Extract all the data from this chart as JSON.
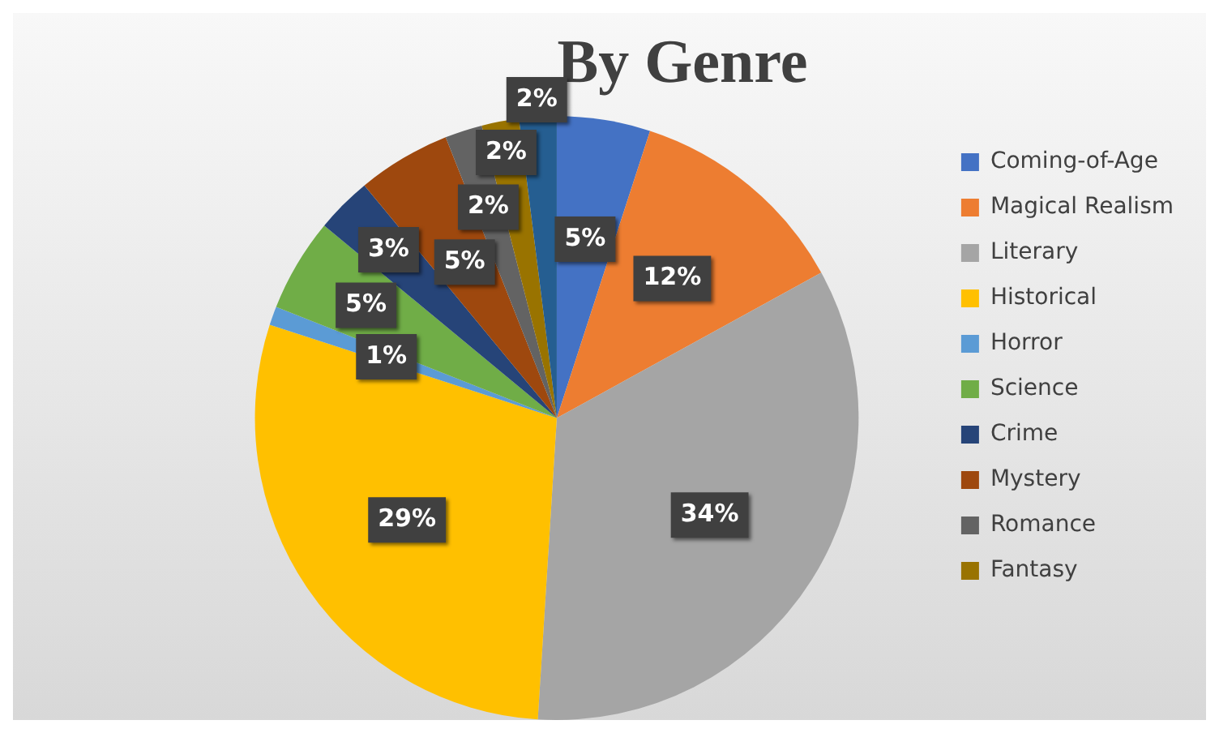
{
  "chart_data": {
    "type": "pie",
    "title": "By Genre",
    "categories": [
      "Coming-of-Age",
      "Magical Realism",
      "Literary",
      "Historical",
      "Horror",
      "Science",
      "Crime",
      "Mystery",
      "Romance",
      "Fantasy",
      null
    ],
    "values": [
      5,
      12,
      34,
      29,
      1,
      5,
      3,
      5,
      2,
      2,
      2
    ],
    "colors": [
      "#4472c4",
      "#ed7d31",
      "#a5a5a5",
      "#ffc000",
      "#5b9bd5",
      "#70ad47",
      "#264478",
      "#9e480e",
      "#636363",
      "#997300",
      "#255e91"
    ],
    "value_labels": [
      "5%",
      "12%",
      "34%",
      "29%",
      "1%",
      "5%",
      "3%",
      "5%",
      "2%",
      "2%",
      "2%"
    ],
    "legend": "right"
  }
}
